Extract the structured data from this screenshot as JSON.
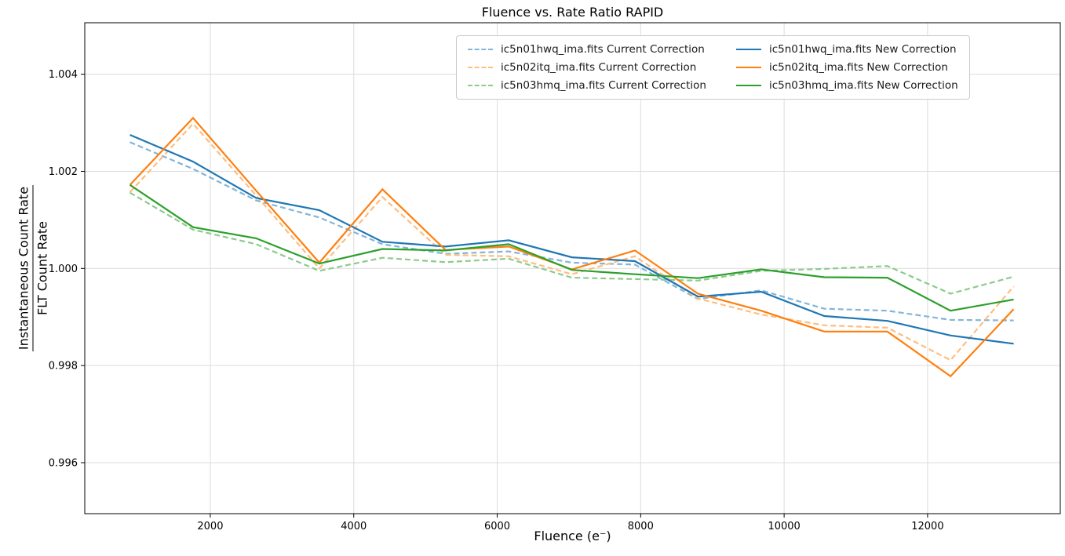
{
  "title": "Fluence vs. Rate Ratio RAPID",
  "chart_data": {
    "type": "line",
    "title": "Fluence vs. Rate Ratio RAPID",
    "xlabel": "Fluence (e⁻)",
    "ylabel_numerator": "Instantaneous Count Rate",
    "ylabel_denominator": "FLT Count Rate",
    "grid": true,
    "legend_position": "upper center",
    "xlim": [
      250,
      13850
    ],
    "ylim": [
      0.99495,
      1.00506
    ],
    "xticks": [
      2000,
      4000,
      6000,
      8000,
      10000,
      12000
    ],
    "yticks": [
      0.996,
      0.998,
      1.0,
      1.002,
      1.004
    ],
    "ytick_labels": [
      "0.996",
      "0.998",
      "1.000",
      "1.002",
      "1.004"
    ],
    "x": [
      880,
      1760,
      2640,
      3520,
      4400,
      5280,
      6160,
      7040,
      7920,
      8800,
      9680,
      10560,
      11440,
      12320,
      13200
    ],
    "series": [
      {
        "label": "ic5n01hwq_ima.fits Current Correction",
        "style": "dashed",
        "color": "#84b5d7",
        "values": [
          1.0026,
          1.00205,
          1.0014,
          1.00105,
          1.0005,
          1.0003,
          1.00035,
          1.00012,
          1.00008,
          0.99937,
          0.99955,
          0.99917,
          0.99913,
          0.99894,
          0.99893
        ]
      },
      {
        "label": "ic5n02itq_ima.fits Current Correction",
        "style": "dashed",
        "color": "#ffbd80",
        "values": [
          1.00157,
          1.00298,
          1.0015,
          1.0,
          1.00147,
          1.00028,
          1.00025,
          0.99988,
          1.00025,
          0.99938,
          0.99905,
          0.99883,
          0.99878,
          0.99811,
          0.99963
        ]
      },
      {
        "label": "ic5n03hmq_ima.fits Current Correction",
        "style": "dashed",
        "color": "#8ccb8c",
        "values": [
          1.00156,
          1.0008,
          1.0005,
          0.99995,
          1.00022,
          1.00013,
          1.0002,
          0.99981,
          0.99978,
          0.99975,
          0.99995,
          0.99999,
          1.00005,
          0.99948,
          0.99983
        ]
      },
      {
        "label": "ic5n01hwq_ima.fits New Correction",
        "style": "solid",
        "color": "#1f77b4",
        "values": [
          1.00275,
          1.0022,
          1.00145,
          1.0012,
          1.00055,
          1.00045,
          1.00058,
          1.00023,
          1.00015,
          0.99942,
          0.99952,
          0.99902,
          0.99892,
          0.99862,
          0.99845
        ]
      },
      {
        "label": "ic5n02itq_ima.fits New Correction",
        "style": "solid",
        "color": "#ff7f0e",
        "values": [
          1.00172,
          1.0031,
          1.0016,
          1.00012,
          1.00163,
          1.00038,
          1.00045,
          0.99998,
          1.00037,
          0.99948,
          0.99913,
          0.9987,
          0.9987,
          0.99778,
          0.99916
        ]
      },
      {
        "label": "ic5n03hmq_ima.fits New Correction",
        "style": "solid",
        "color": "#2ca02c",
        "values": [
          1.00172,
          1.00085,
          1.00062,
          1.0001,
          1.0004,
          1.00037,
          1.0005,
          0.99997,
          0.99988,
          0.9998,
          0.99998,
          0.99982,
          0.99981,
          0.99913,
          0.99936
        ]
      }
    ]
  }
}
